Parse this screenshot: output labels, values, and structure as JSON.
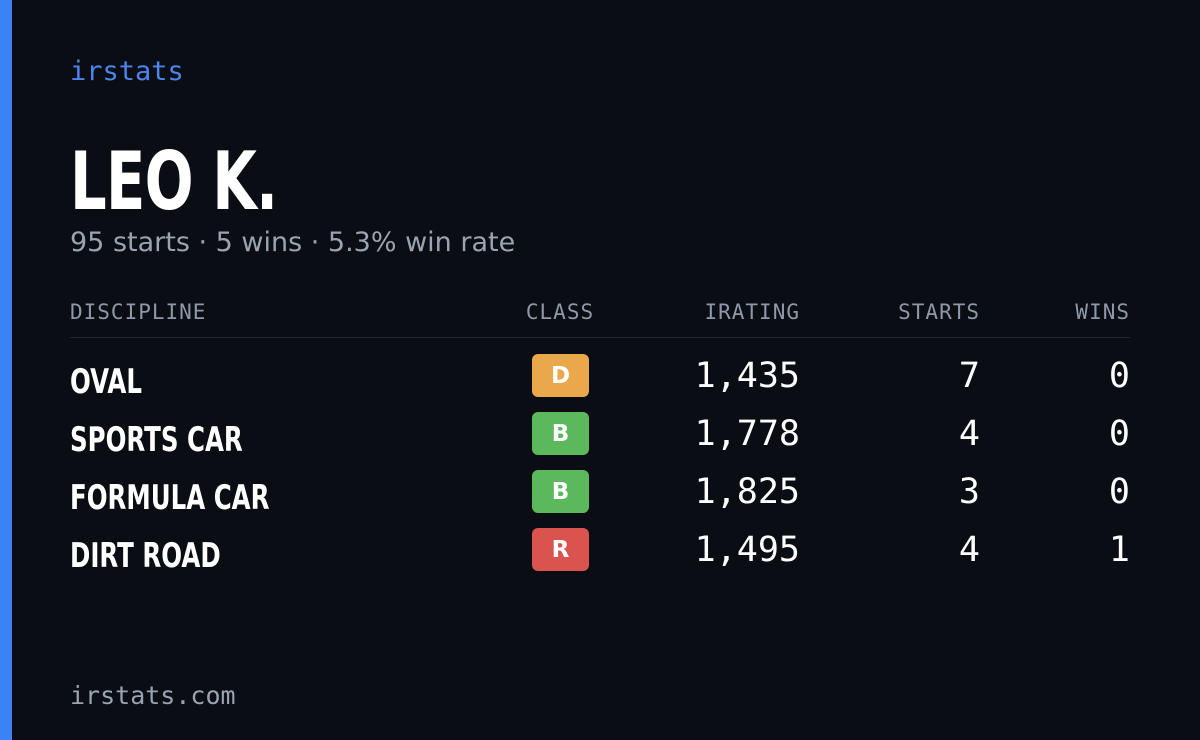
{
  "brand": "irstats",
  "profile": {
    "name": "LEO K.",
    "summary": "95 starts · 5 wins · 5.3% win rate"
  },
  "table": {
    "headers": [
      "DISCIPLINE",
      "CLASS",
      "IRATING",
      "STARTS",
      "WINS"
    ],
    "rows": [
      {
        "discipline": "OVAL",
        "class": "D",
        "class_color": "#eaa84c",
        "irating": "1,435",
        "starts": 7,
        "wins": 0
      },
      {
        "discipline": "SPORTS CAR",
        "class": "B",
        "class_color": "#5cb85c",
        "irating": "1,778",
        "starts": 4,
        "wins": 0
      },
      {
        "discipline": "FORMULA CAR",
        "class": "B",
        "class_color": "#5cb85c",
        "irating": "1,825",
        "starts": 3,
        "wins": 0
      },
      {
        "discipline": "DIRT ROAD",
        "class": "R",
        "class_color": "#d9534f",
        "irating": "1,495",
        "starts": 4,
        "wins": 1
      }
    ]
  },
  "footer": "irstats.com"
}
